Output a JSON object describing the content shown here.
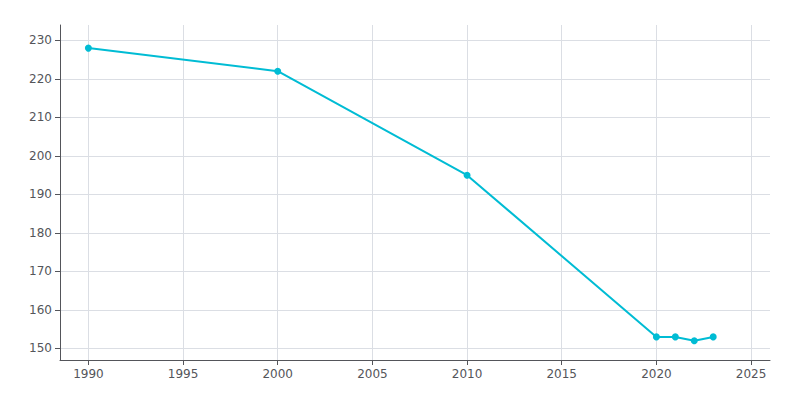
{
  "chart_data": {
    "type": "line",
    "x": [
      1990,
      2000,
      2010,
      2020,
      2021,
      2022,
      2023
    ],
    "values": [
      228,
      222,
      195,
      153,
      153,
      152,
      153
    ],
    "color": "#00bcd4",
    "marker": "circle",
    "xlim": [
      1988.5,
      2026
    ],
    "ylim": [
      147,
      234
    ],
    "xticks": [
      1990,
      1995,
      2000,
      2005,
      2010,
      2015,
      2020,
      2025
    ],
    "yticks": [
      150,
      160,
      170,
      180,
      190,
      200,
      210,
      220,
      230
    ],
    "grid": true
  }
}
